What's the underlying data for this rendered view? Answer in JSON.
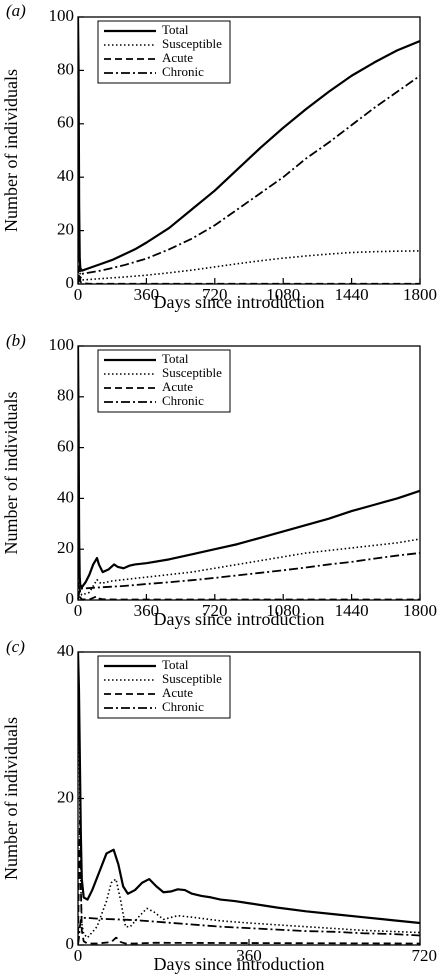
{
  "chart_data": [
    {
      "type": "line",
      "panel_label": "(a)",
      "xlabel": "Days since introduction",
      "ylabel": "Number of individuals",
      "xlim": [
        0,
        1800
      ],
      "ylim": [
        0,
        100
      ],
      "xticks": [
        0,
        360,
        720,
        1080,
        1440,
        1800
      ],
      "yticks": [
        0,
        20,
        40,
        60,
        80,
        100
      ],
      "legend_position": "top-left",
      "series": [
        {
          "name": "Total",
          "style": "solid",
          "x": [
            0,
            3,
            6,
            9,
            12,
            20,
            60,
            120,
            180,
            240,
            300,
            360,
            480,
            600,
            720,
            840,
            960,
            1080,
            1200,
            1320,
            1440,
            1560,
            1680,
            1800
          ],
          "y": [
            100,
            80,
            30,
            10,
            6,
            5,
            6,
            7.5,
            9,
            11,
            13,
            15.5,
            21,
            28,
            35,
            43,
            51,
            58.5,
            65.5,
            72,
            78,
            83,
            87.5,
            91
          ]
        },
        {
          "name": "Susceptible",
          "style": "dotted",
          "x": [
            0,
            3,
            6,
            9,
            12,
            20,
            120,
            240,
            360,
            480,
            600,
            720,
            840,
            960,
            1080,
            1200,
            1320,
            1440,
            1560,
            1680,
            1800
          ],
          "y": [
            100,
            70,
            20,
            6,
            3,
            1.5,
            2,
            2.6,
            3.3,
            4.2,
            5.2,
            6.4,
            7.6,
            8.7,
            9.7,
            10.5,
            11.2,
            11.8,
            12.1,
            12.3,
            12.4
          ]
        },
        {
          "name": "Acute",
          "style": "dashed",
          "x": [
            0,
            3,
            6,
            9,
            12,
            20,
            60,
            1800
          ],
          "y": [
            0,
            15,
            20,
            8,
            1,
            0.3,
            0.1,
            0.1
          ]
        },
        {
          "name": "Chronic",
          "style": "dashdot",
          "x": [
            0,
            3,
            6,
            9,
            12,
            20,
            120,
            240,
            360,
            480,
            600,
            720,
            840,
            960,
            1080,
            1200,
            1320,
            1440,
            1560,
            1680,
            1800
          ],
          "y": [
            0,
            1,
            3,
            3.5,
            3.7,
            3.8,
            5,
            7,
            9.5,
            13,
            17,
            22,
            28,
            34,
            40,
            47,
            53,
            59.5,
            66,
            72,
            78
          ]
        }
      ]
    },
    {
      "type": "line",
      "panel_label": "(b)",
      "xlabel": "Days since introduction",
      "ylabel": "Number of individuals",
      "xlim": [
        0,
        1800
      ],
      "ylim": [
        0,
        100
      ],
      "xticks": [
        0,
        360,
        720,
        1080,
        1440,
        1800
      ],
      "yticks": [
        0,
        20,
        40,
        60,
        80,
        100
      ],
      "legend_position": "top-left",
      "series": [
        {
          "name": "Total",
          "style": "solid",
          "x": [
            0,
            3,
            6,
            9,
            12,
            20,
            40,
            60,
            80,
            100,
            110,
            130,
            160,
            190,
            210,
            240,
            270,
            300,
            360,
            480,
            600,
            720,
            840,
            960,
            1080,
            1200,
            1320,
            1440,
            1560,
            1680,
            1800
          ],
          "y": [
            100,
            70,
            25,
            9,
            6,
            5,
            7,
            10,
            14,
            16.5,
            14,
            11,
            12,
            14,
            13,
            12.5,
            13.5,
            14,
            14.5,
            16,
            18,
            20,
            22,
            24.5,
            27,
            29.5,
            32,
            35,
            37.5,
            40,
            43
          ]
        },
        {
          "name": "Susceptible",
          "style": "dotted",
          "x": [
            0,
            3,
            6,
            9,
            12,
            20,
            60,
            100,
            120,
            180,
            240,
            360,
            480,
            600,
            720,
            840,
            960,
            1080,
            1200,
            1320,
            1440,
            1560,
            1680,
            1800
          ],
          "y": [
            100,
            60,
            15,
            5,
            3,
            2,
            3,
            8,
            6.5,
            7.5,
            8,
            9,
            10,
            11,
            12.5,
            14,
            15.5,
            17,
            18.5,
            19.5,
            20.5,
            21.5,
            22.5,
            24
          ]
        },
        {
          "name": "Acute",
          "style": "dashed",
          "x": [
            0,
            3,
            6,
            9,
            12,
            20,
            60,
            100,
            110,
            130,
            200,
            1800
          ],
          "y": [
            0,
            15,
            18,
            6,
            1,
            0.3,
            0.2,
            1.5,
            0.6,
            0.3,
            0.2,
            0.2
          ]
        },
        {
          "name": "Chronic",
          "style": "dashdot",
          "x": [
            0,
            3,
            6,
            9,
            12,
            20,
            120,
            240,
            360,
            480,
            600,
            720,
            840,
            960,
            1080,
            1200,
            1320,
            1440,
            1560,
            1680,
            1800
          ],
          "y": [
            0,
            1,
            3,
            4,
            4.3,
            4.5,
            5,
            5.5,
            6.3,
            7,
            7.8,
            8.7,
            9.7,
            10.7,
            11.7,
            12.8,
            14,
            15,
            16.3,
            17.5,
            18.5
          ]
        }
      ]
    },
    {
      "type": "line",
      "panel_label": "(c)",
      "xlabel": "Days since introduction",
      "ylabel": "Number of individuals",
      "xlim": [
        0,
        720
      ],
      "ylim": [
        0,
        40
      ],
      "xticks": [
        0,
        360,
        720
      ],
      "yticks": [
        0,
        20,
        40
      ],
      "legend_position": "top-left",
      "series": [
        {
          "name": "Total",
          "style": "solid",
          "x": [
            0,
            2,
            4,
            6,
            8,
            12,
            20,
            30,
            45,
            60,
            75,
            85,
            95,
            105,
            120,
            135,
            150,
            165,
            180,
            195,
            210,
            225,
            240,
            260,
            280,
            300,
            330,
            360,
            420,
            480,
            540,
            600,
            660,
            720
          ],
          "y": [
            40,
            35,
            25,
            15,
            9,
            6.5,
            6.2,
            7.5,
            10,
            12.5,
            13,
            11,
            8,
            7,
            7.5,
            8.5,
            9,
            8,
            7.2,
            7.3,
            7.6,
            7.5,
            7,
            6.7,
            6.5,
            6.2,
            6,
            5.7,
            5.1,
            4.6,
            4.2,
            3.8,
            3.4,
            3
          ]
        },
        {
          "name": "Susceptible",
          "style": "dotted",
          "x": [
            0,
            2,
            4,
            6,
            8,
            12,
            20,
            40,
            60,
            70,
            80,
            90,
            100,
            110,
            130,
            145,
            160,
            180,
            210,
            240,
            300,
            360,
            480,
            600,
            720
          ],
          "y": [
            40,
            30,
            18,
            8,
            3,
            1.5,
            1,
            2.5,
            6,
            8.5,
            9,
            6,
            2.5,
            2.5,
            4,
            5,
            4.5,
            3.5,
            4,
            3.8,
            3.3,
            3,
            2.5,
            2,
            1.7
          ]
        },
        {
          "name": "Acute",
          "style": "dashed",
          "x": [
            0,
            2,
            4,
            6,
            8,
            12,
            20,
            40,
            70,
            80,
            85,
            90,
            100,
            120,
            160,
            720
          ],
          "y": [
            0,
            10,
            17,
            8,
            2,
            0.5,
            0.2,
            0.2,
            0.4,
            1,
            0.8,
            0.4,
            0.2,
            0.2,
            0.3,
            0.2
          ]
        },
        {
          "name": "Chronic",
          "style": "dashdot",
          "x": [
            0,
            2,
            4,
            6,
            8,
            12,
            20,
            40,
            80,
            120,
            160,
            200,
            240,
            300,
            360,
            420,
            480,
            540,
            600,
            660,
            720
          ],
          "y": [
            0,
            1,
            2.5,
            3.4,
            3.6,
            3.7,
            3.7,
            3.6,
            3.5,
            3.4,
            3.2,
            3,
            2.8,
            2.5,
            2.3,
            2.1,
            1.9,
            1.8,
            1.6,
            1.5,
            1.3
          ]
        }
      ]
    }
  ]
}
